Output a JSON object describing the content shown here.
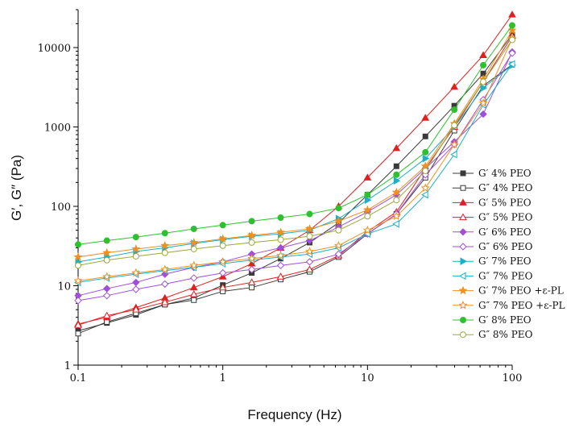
{
  "chart_data": {
    "type": "line",
    "xlabel": "Frequency (Hz)",
    "ylabel": "G′, G″ (Pa)",
    "x_scale": "log",
    "y_scale": "log",
    "xlim": [
      0.1,
      100
    ],
    "ylim": [
      1,
      30000
    ],
    "x_ticks": [
      0.1,
      1,
      10,
      100
    ],
    "x_tick_labels": [
      "0.1",
      "1",
      "10",
      "100"
    ],
    "y_ticks": [
      1,
      10,
      100,
      1000,
      10000
    ],
    "y_tick_labels": [
      "1",
      "10",
      "100",
      "1000",
      "10000"
    ],
    "grid": false,
    "legend_position": "right",
    "x": [
      0.1,
      0.158,
      0.251,
      0.398,
      0.631,
      1,
      1.585,
      2.512,
      3.981,
      6.31,
      10,
      15.85,
      25.12,
      39.81,
      63.1,
      100
    ],
    "series": [
      {
        "name": "G′ 4% PEO",
        "color": "#3a3a3a",
        "marker": "square",
        "filled": true,
        "values": [
          2.7,
          3.4,
          4.3,
          5.8,
          7.0,
          10.2,
          14.5,
          22,
          35,
          62,
          140,
          320,
          760,
          1850,
          4700,
          14500
        ]
      },
      {
        "name": "G″ 4% PEO",
        "color": "#3a3a3a",
        "marker": "square",
        "filled": false,
        "values": [
          2.5,
          3.5,
          4.5,
          5.8,
          6.6,
          8.5,
          9.5,
          12,
          15,
          23,
          45,
          80,
          230,
          900,
          3300,
          6100
        ]
      },
      {
        "name": "G′ 5% PEO",
        "color": "#e02020",
        "marker": "triangle",
        "filled": true,
        "values": [
          3.3,
          4.0,
          5.3,
          7.0,
          9.5,
          13,
          19,
          30,
          50,
          100,
          230,
          540,
          1300,
          3200,
          8000,
          26000
        ]
      },
      {
        "name": "G″ 5% PEO",
        "color": "#e02020",
        "marker": "triangle",
        "filled": false,
        "values": [
          3.2,
          4.2,
          5.0,
          6.2,
          7.8,
          9.5,
          11,
          13,
          16,
          24,
          48,
          85,
          300,
          1000,
          3700,
          14000
        ]
      },
      {
        "name": "G′ 6% PEO",
        "color": "#a14fd9",
        "marker": "diamond",
        "filled": true,
        "values": [
          7.5,
          9.2,
          11,
          14,
          17,
          20,
          25,
          30,
          37,
          55,
          85,
          140,
          300,
          650,
          1450,
          8800
        ]
      },
      {
        "name": "G″ 6% PEO",
        "color": "#a14fd9",
        "marker": "diamond",
        "filled": false,
        "values": [
          6.5,
          7.5,
          9.0,
          10.5,
          12.5,
          14.5,
          16,
          18,
          20,
          25,
          45,
          80,
          250,
          600,
          2200,
          8500
        ]
      },
      {
        "name": "G′ 7% PEO",
        "color": "#1ab0c8",
        "marker": "triangle-right",
        "filled": true,
        "values": [
          20,
          23,
          27,
          30,
          34,
          38,
          42,
          45,
          50,
          70,
          120,
          210,
          400,
          1000,
          3100,
          6000
        ]
      },
      {
        "name": "G″ 7% PEO",
        "color": "#1ab0c8",
        "marker": "triangle-left",
        "filled": false,
        "values": [
          11,
          12.5,
          14,
          15.5,
          17,
          19,
          21,
          23,
          25,
          30,
          45,
          60,
          140,
          450,
          1900,
          6200
        ]
      },
      {
        "name": "G′ 7% PEO +ε-PL",
        "color": "#f0901e",
        "marker": "star",
        "filled": true,
        "values": [
          23,
          26,
          29,
          32,
          35,
          39,
          43,
          47,
          52,
          65,
          90,
          150,
          320,
          1100,
          4000,
          16500
        ]
      },
      {
        "name": "G″ 7% PEO +ε-PL",
        "color": "#f0901e",
        "marker": "star",
        "filled": false,
        "values": [
          11.5,
          13,
          14.5,
          16,
          18,
          20,
          22,
          24,
          27,
          32,
          50,
          75,
          170,
          600,
          2000,
          13000
        ]
      },
      {
        "name": "G′ 8% PEO",
        "color": "#2ec12e",
        "marker": "circle",
        "filled": true,
        "values": [
          33,
          37,
          41,
          46,
          52,
          58,
          65,
          72,
          80,
          95,
          140,
          250,
          480,
          1650,
          6000,
          19000
        ]
      },
      {
        "name": "G″ 8% PEO",
        "color": "#9aa83a",
        "marker": "circle",
        "filled": false,
        "values": [
          18,
          21,
          23.5,
          26,
          29,
          32,
          35,
          38,
          42,
          50,
          75,
          120,
          280,
          1050,
          3700,
          12500
        ]
      }
    ]
  }
}
